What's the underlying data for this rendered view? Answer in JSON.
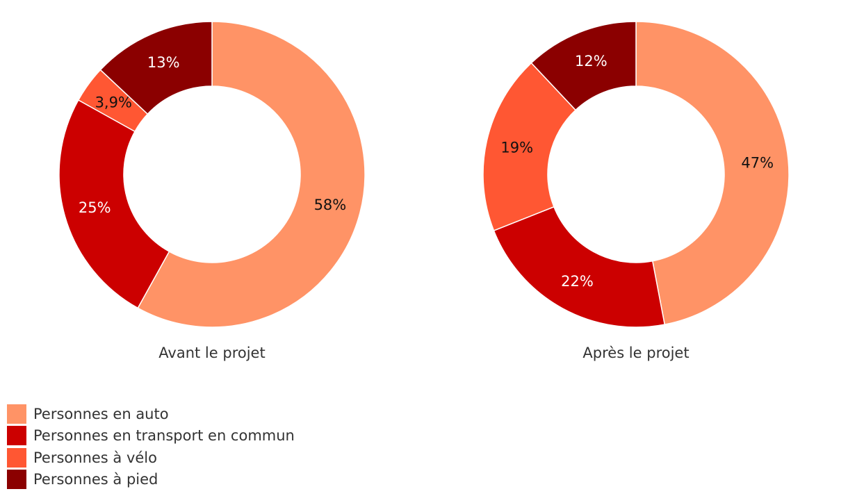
{
  "chart_data": {
    "type": "pie",
    "variant": "donut",
    "categories": [
      "Personnes en auto",
      "Personnes en transport en commun",
      "Personnes à vélo",
      "Personnes à pied"
    ],
    "colors": [
      "#ff9366",
      "#cc0000",
      "#ff5733",
      "#8b0000"
    ],
    "legend_position": "bottom-left",
    "charts": [
      {
        "name": "Avant le projet",
        "values": [
          58,
          25,
          3.9,
          13
        ],
        "labels": [
          "58%",
          "25%",
          "3,9%",
          "13%"
        ]
      },
      {
        "name": "Après le projet",
        "values": [
          47,
          22,
          19,
          12
        ],
        "labels": [
          "47%",
          "22%",
          "19%",
          "12%"
        ]
      }
    ]
  }
}
